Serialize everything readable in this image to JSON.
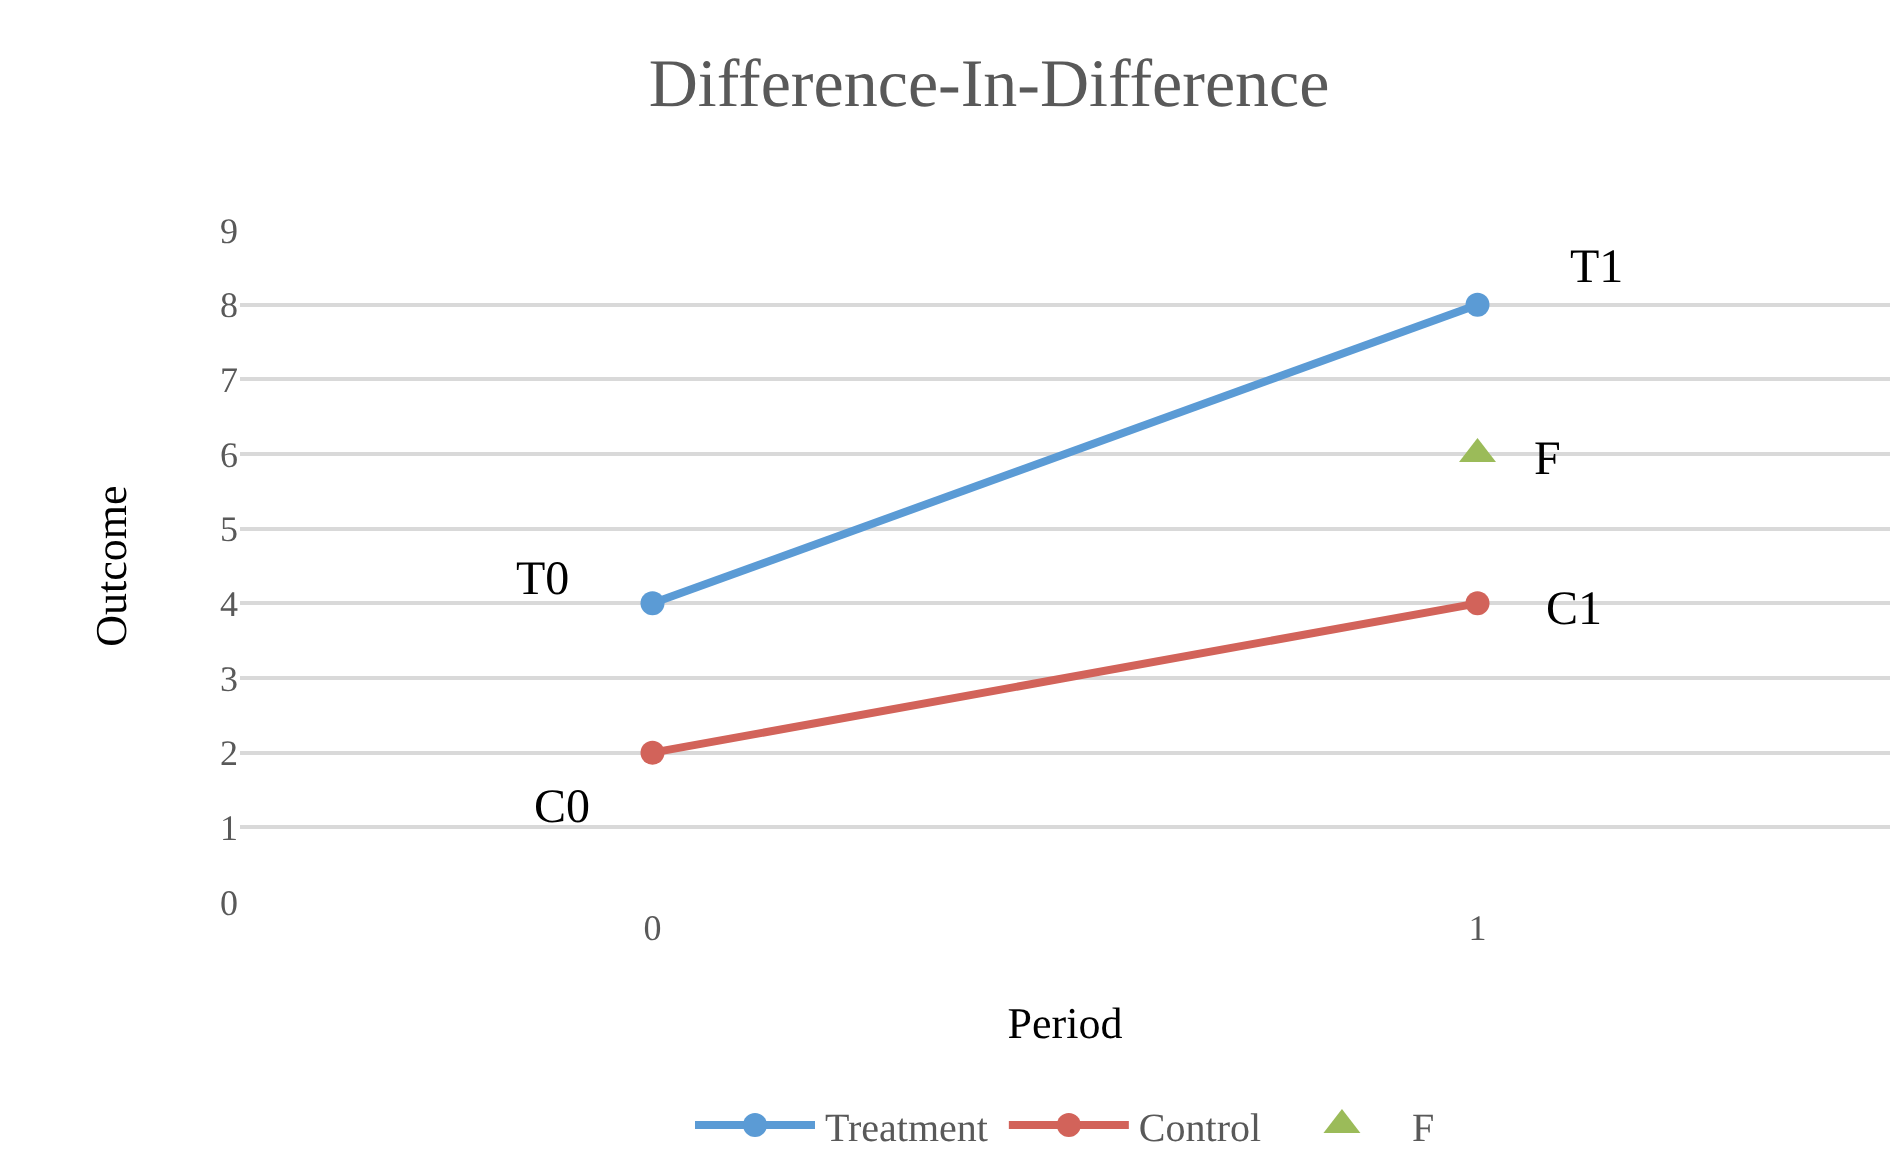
{
  "chart_data": {
    "type": "line",
    "title": "Difference-In-Difference",
    "xlabel": "Period",
    "ylabel": "Outcome",
    "categories": [
      "0",
      "1"
    ],
    "series": [
      {
        "name": "Treatment",
        "color": "#5b9bd5",
        "values": [
          4,
          8
        ],
        "marker": "circle"
      },
      {
        "name": "Control",
        "color": "#d2635a",
        "values": [
          2,
          4
        ],
        "marker": "circle"
      },
      {
        "name": "F",
        "type": "scatter",
        "color": "#9bbb59",
        "values": [
          null,
          6
        ],
        "marker": "triangle"
      }
    ],
    "annotations": [
      {
        "text": "T0",
        "x": "0",
        "y": 4
      },
      {
        "text": "C0",
        "x": "0",
        "y": 2
      },
      {
        "text": "T1",
        "x": "1",
        "y": 8
      },
      {
        "text": "C1",
        "x": "1",
        "y": 4
      },
      {
        "text": "F",
        "x": "1",
        "y": 6
      }
    ],
    "ylim": [
      0,
      9
    ],
    "yticks": [
      0,
      1,
      2,
      3,
      4,
      5,
      6,
      7,
      8,
      9
    ],
    "grid": "y",
    "legend": "bottom"
  }
}
